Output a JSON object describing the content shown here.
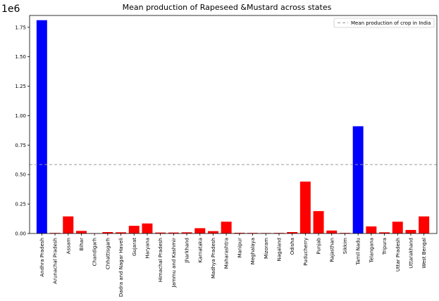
{
  "chart_data": {
    "type": "bar",
    "title": "Mean production of Rapeseed &Mustard across states",
    "xlabel": "",
    "ylabel": "",
    "offset_label": "1e6",
    "ylim": [
      0,
      1.85
    ],
    "yticks": [
      "0.00",
      "0.25",
      "0.50",
      "0.75",
      "1.00",
      "1.25",
      "1.50",
      "1.75"
    ],
    "grid": false,
    "categories": [
      "Andhra Pradesh",
      "Arunachal Pradesh",
      "Assam",
      "Bihar",
      "Chandigarh",
      "Chhattisgarh",
      "Dadra and Nagar Haveli",
      "Gujarat",
      "Haryana",
      "Himachal Pradesh",
      "Jammu and Kashmir",
      "Jharkhand",
      "Karnataka",
      "Madhya Pradesh",
      "Maharashtra",
      "Manipur",
      "Meghalaya",
      "Mizoram",
      "Nagaland",
      "Odisha",
      "Puducherry",
      "Punjab",
      "Rajasthan",
      "Sikkim",
      "Tamil Nadu",
      "Telangana",
      "Tripura",
      "Uttar Pradesh",
      "Uttarakhand",
      "West Bengal"
    ],
    "values": [
      1.81,
      0.005,
      0.145,
      0.022,
      0.003,
      0.012,
      0.01,
      0.065,
      0.085,
      0.008,
      0.008,
      0.01,
      0.045,
      0.02,
      0.1,
      0.006,
      0.005,
      0.004,
      0.005,
      0.012,
      0.44,
      0.19,
      0.025,
      0.005,
      0.91,
      0.06,
      0.01,
      0.1,
      0.03,
      0.145
    ],
    "bar_colors": [
      "#0000ff",
      "#ff0000",
      "#ff0000",
      "#ff0000",
      "#ff0000",
      "#ff0000",
      "#ff0000",
      "#ff0000",
      "#ff0000",
      "#ff0000",
      "#ff0000",
      "#ff0000",
      "#ff0000",
      "#ff0000",
      "#ff0000",
      "#ff0000",
      "#ff0000",
      "#ff0000",
      "#ff0000",
      "#ff0000",
      "#ff0000",
      "#ff0000",
      "#ff0000",
      "#ff0000",
      "#0000ff",
      "#ff0000",
      "#ff0000",
      "#ff0000",
      "#ff0000",
      "#ff0000"
    ],
    "mean_line": {
      "value": 0.585,
      "label": "Mean production of crop in India",
      "color": "#999999"
    },
    "legend": {
      "position": "top-right"
    }
  }
}
